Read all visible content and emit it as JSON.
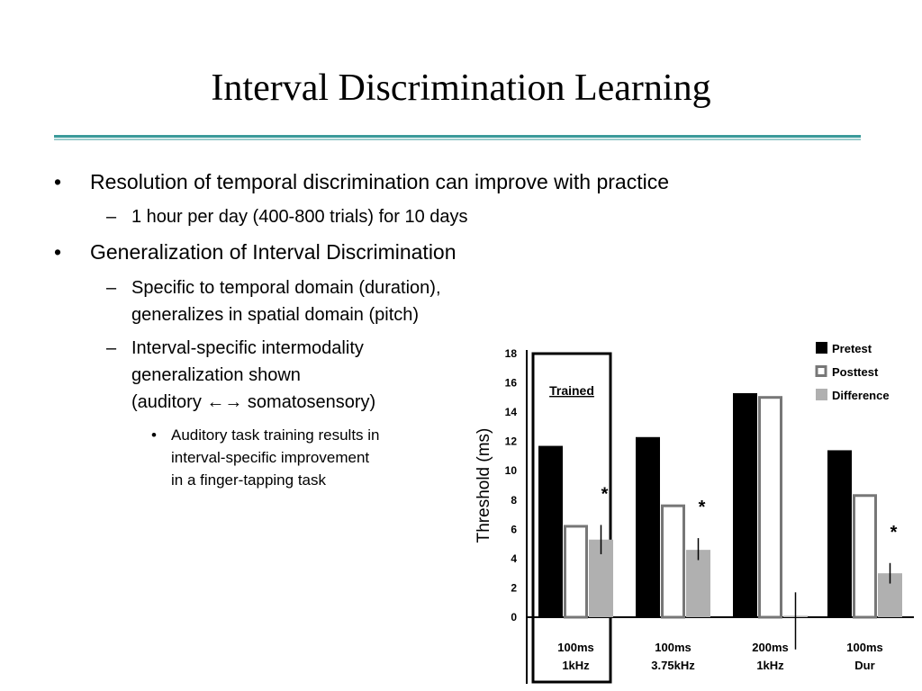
{
  "slide": {
    "title": "Interval Discrimination Learning",
    "rule_color_top": "#3a9a9a",
    "rule_color_bottom": "#9ccccc",
    "bullets": {
      "b1": "Resolution of temporal discrimination can improve with practice",
      "b1_1": "1 hour per day (400-800 trials) for 10 days",
      "b2": "Generalization of Interval Discrimination",
      "b2_1_line1": "Specific to temporal domain (duration),",
      "b2_1_line2": "generalizes in spatial domain (pitch)",
      "b2_2_line1": "Interval-specific intermodality",
      "b2_2_line2": "generalization shown",
      "b2_2_line3_a": "(auditory ",
      "b2_2_line3_arrows": "←→",
      "b2_2_line3_b": " somatosensory)",
      "b2_2_1_line1": "Auditory task training results in",
      "b2_2_1_line2": "interval-specific improvement",
      "b2_2_1_line3": "in a finger-tapping task"
    },
    "markers": {
      "level1": "•",
      "level2": "–",
      "level3": "•"
    }
  },
  "chart_data": {
    "type": "bar",
    "ylabel": "Threshold (ms)",
    "ylim": [
      0,
      18
    ],
    "yticks": [
      0,
      2,
      4,
      6,
      8,
      10,
      12,
      14,
      16,
      18
    ],
    "categories": [
      {
        "line1": "100ms",
        "line2": "1kHz"
      },
      {
        "line1": "100ms",
        "line2": "3.75kHz"
      },
      {
        "line1": "200ms",
        "line2": "1kHz"
      },
      {
        "line1": "100ms",
        "line2": "Dur"
      }
    ],
    "series": [
      {
        "name": "Pretest",
        "values": [
          11.7,
          12.3,
          15.3,
          11.4
        ],
        "color": "#000000",
        "style": "filled"
      },
      {
        "name": "Posttest",
        "values": [
          6.3,
          7.7,
          15.1,
          8.4
        ],
        "color": "#777777",
        "style": "outline"
      },
      {
        "name": "Difference",
        "values": [
          5.3,
          4.6,
          0.1,
          3.0
        ],
        "color": "#b0b0b0",
        "style": "filled"
      }
    ],
    "error_bars": {
      "series": "Difference",
      "low": [
        4.3,
        3.9,
        -2.2,
        2.3
      ],
      "high": [
        6.3,
        5.4,
        1.7,
        3.7
      ]
    },
    "significance": [
      "*",
      "*",
      "",
      "*"
    ],
    "highlight_box": {
      "category_index": 0,
      "label": "Trained"
    },
    "legend_position": "top-right",
    "grid": false
  }
}
